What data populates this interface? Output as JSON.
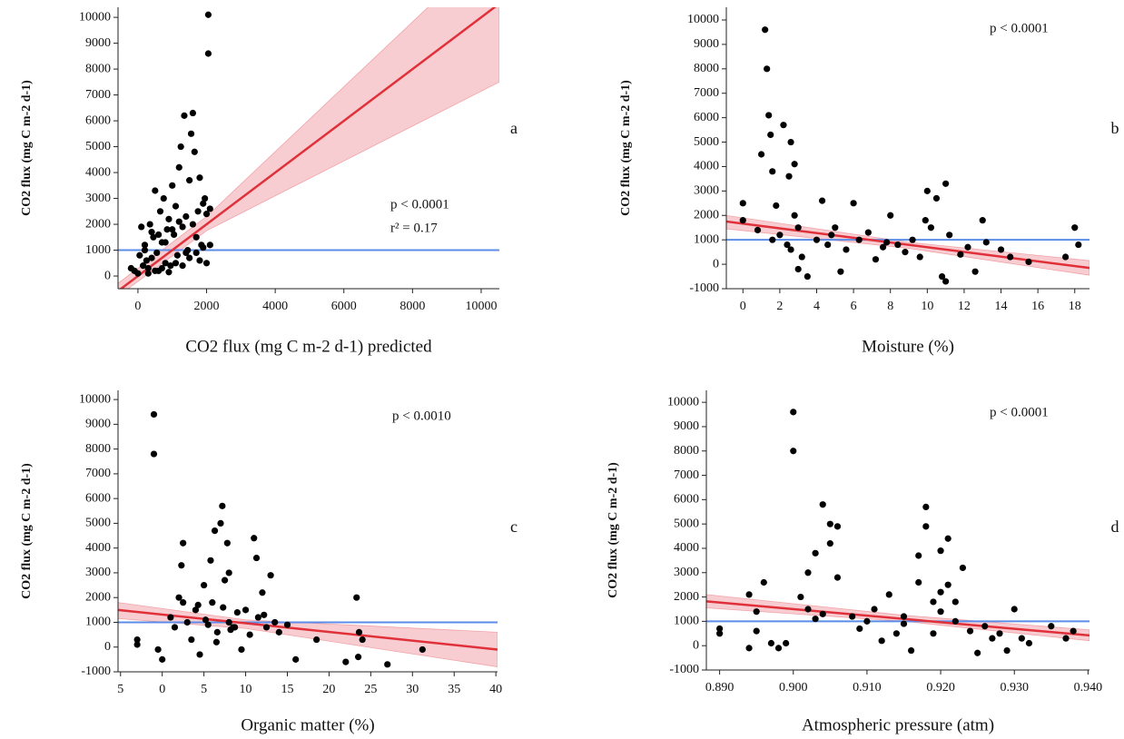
{
  "chart_data": [
    {
      "type": "scatter",
      "panel": "a",
      "y_label": "CO2 flux (mg C m-2 d-1)",
      "x_label": "CO2 flux (mg C m-2 d-1) predicted",
      "annotations": [
        "p < 0.0001",
        "r² =  0.17"
      ],
      "xlim": [
        -580,
        10530
      ],
      "ylim": [
        -490,
        10390
      ],
      "xticks": [
        0,
        2000,
        4000,
        6000,
        8000,
        10000
      ],
      "yticks": [
        0,
        1000,
        2000,
        3000,
        4000,
        5000,
        6000,
        7000,
        8000,
        9000,
        10000
      ],
      "color": "#000000",
      "reference_line": 1000,
      "reference_color": "#5b8de8",
      "fit_color": "#e0303a",
      "band_color": "#f6bcc2",
      "x": [
        -200,
        -100,
        0,
        50,
        100,
        150,
        200,
        250,
        300,
        350,
        400,
        450,
        500,
        550,
        600,
        650,
        700,
        750,
        800,
        850,
        900,
        950,
        1000,
        1050,
        1100,
        1150,
        1200,
        1250,
        1300,
        1350,
        1400,
        1450,
        1500,
        1550,
        1600,
        1650,
        1700,
        1750,
        1800,
        1850,
        1900,
        1950,
        2000,
        2050,
        2050,
        2100,
        2100,
        300,
        500,
        700,
        900,
        1100,
        1300,
        1500,
        1700,
        1900,
        200,
        400,
        600,
        800,
        1000,
        1200,
        1400,
        1600,
        2000,
        1800
      ],
      "values": [
        300,
        200,
        100,
        800,
        1900,
        400,
        1200,
        600,
        300,
        2000,
        700,
        1500,
        3300,
        900,
        200,
        2500,
        1300,
        3000,
        500,
        1800,
        2200,
        400,
        3500,
        1600,
        2700,
        800,
        4200,
        5000,
        1900,
        6200,
        2300,
        1000,
        3700,
        5500,
        6300,
        4800,
        1500,
        2500,
        600,
        1200,
        2800,
        3000,
        2400,
        10100,
        8600,
        2600,
        1200,
        100,
        200,
        300,
        150,
        500,
        400,
        700,
        900,
        1100,
        1000,
        1700,
        1600,
        1300,
        1800,
        2100,
        900,
        2000,
        500,
        3800
      ],
      "fit": {
        "x": [
          -580,
          10530
        ],
        "y": [
          -580,
          10530
        ]
      },
      "band": {
        "x": [
          -580,
          2000,
          10530
        ],
        "lower": [
          -780,
          1750,
          7500
        ],
        "upper": [
          -280,
          2300,
          13000
        ]
      }
    },
    {
      "type": "scatter",
      "panel": "b",
      "y_label": "CO2 flux (mg C m-2 d-1)",
      "x_label": "Moisture (%)",
      "annotations": [
        "p < 0.0001"
      ],
      "xlim": [
        -0.9,
        18.8
      ],
      "ylim": [
        -1000,
        10520
      ],
      "xticks": [
        0,
        2,
        4,
        6,
        8,
        10,
        12,
        14,
        16,
        18
      ],
      "yticks": [
        -1000,
        0,
        1000,
        2000,
        3000,
        4000,
        5000,
        6000,
        7000,
        8000,
        9000,
        10000
      ],
      "color": "#000000",
      "reference_line": 1000,
      "reference_color": "#5b8de8",
      "fit_color": "#e0303a",
      "band_color": "#f6bcc2",
      "x": [
        0,
        0,
        1,
        1.2,
        1.3,
        1.4,
        1.5,
        1.6,
        1.8,
        2,
        2.2,
        2.4,
        2.5,
        2.6,
        2.8,
        3,
        3.2,
        3.5,
        4,
        4.3,
        4.6,
        5,
        5.3,
        5.6,
        6,
        6.3,
        6.8,
        7.2,
        7.6,
        8,
        8.4,
        8.8,
        9.2,
        9.6,
        10,
        10.2,
        10.5,
        10.8,
        11,
        11,
        11.2,
        11.8,
        12.2,
        12.6,
        13,
        13.2,
        14,
        14.5,
        15.5,
        17.5,
        18,
        18.2,
        2.8,
        2.6,
        3,
        1.6,
        0.8,
        4.8,
        9.9,
        7.8
      ],
      "values": [
        2500,
        1800,
        4500,
        9600,
        8000,
        6100,
        5300,
        3800,
        2400,
        1200,
        5700,
        800,
        3600,
        5000,
        4100,
        1500,
        300,
        -500,
        1000,
        2600,
        800,
        1500,
        -300,
        600,
        2500,
        1000,
        1300,
        200,
        700,
        2000,
        800,
        500,
        1000,
        300,
        3000,
        1500,
        2700,
        -500,
        3300,
        -700,
        1200,
        400,
        700,
        -300,
        1800,
        900,
        600,
        300,
        100,
        300,
        1500,
        800,
        2000,
        600,
        -200,
        1000,
        1400,
        1200,
        1800,
        900
      ],
      "fit": {
        "x": [
          -0.9,
          18.8
        ],
        "y": [
          1750,
          -150
        ]
      },
      "band": {
        "x": [
          -0.9,
          9,
          18.8
        ],
        "lower": [
          1450,
          650,
          -450
        ],
        "upper": [
          2000,
          900,
          150
        ]
      }
    },
    {
      "type": "scatter",
      "panel": "c",
      "y_label": "CO2 flux (mg C m-2 d-1)",
      "x_label": "Organic matter (%)",
      "annotations": [
        "p < 0.0010"
      ],
      "xlim": [
        -5.3,
        40.2
      ],
      "ylim": [
        -1000,
        10370
      ],
      "xticks": [
        {
          "value": -5,
          "label": "5"
        },
        0,
        5,
        10,
        15,
        20,
        25,
        30,
        35,
        40
      ],
      "yticks": [
        -1000,
        0,
        1000,
        2000,
        3000,
        4000,
        5000,
        6000,
        7000,
        8000,
        9000,
        10000
      ],
      "color": "#000000",
      "reference_line": 1000,
      "reference_color": "#5b8de8",
      "fit_color": "#e0303a",
      "band_color": "#f6bcc2",
      "x": [
        -3,
        -3,
        -1,
        -1,
        -0.5,
        0,
        1,
        1.5,
        2,
        2.5,
        3,
        3.5,
        4,
        4.5,
        5,
        5.5,
        5.8,
        6,
        6.3,
        6.6,
        7,
        7.2,
        7.5,
        7.8,
        8,
        8,
        8.2,
        8.5,
        9,
        9.5,
        10,
        10.5,
        11,
        11.3,
        11.5,
        12,
        12.5,
        13,
        13.5,
        14,
        15,
        16,
        18.5,
        22,
        23.3,
        23.5,
        23.6,
        24,
        27,
        31.2,
        6.5,
        7.3,
        4.3,
        2.3,
        2.5,
        12.2,
        5.2,
        8.7
      ],
      "values": [
        300,
        100,
        9400,
        7800,
        -100,
        -500,
        1200,
        800,
        2000,
        4200,
        1000,
        300,
        1500,
        -300,
        2500,
        900,
        3500,
        1800,
        4700,
        600,
        5000,
        5700,
        2700,
        4200,
        1000,
        3000,
        700,
        800,
        1400,
        -100,
        1500,
        500,
        4400,
        3600,
        1200,
        2200,
        800,
        2900,
        1000,
        600,
        900,
        -500,
        300,
        -600,
        2000,
        -400,
        600,
        300,
        -700,
        -100,
        200,
        1600,
        1700,
        3300,
        1800,
        1300,
        1100,
        800
      ],
      "fit": {
        "x": [
          -5.3,
          40.2
        ],
        "y": [
          1500,
          -100
        ]
      },
      "band": {
        "x": [
          -5.3,
          10,
          40.2
        ],
        "lower": [
          1150,
          750,
          -800
        ],
        "upper": [
          1800,
          1100,
          600
        ]
      }
    },
    {
      "type": "scatter",
      "panel": "d",
      "y_label": "CO2 flux (mg C m-2 d-1)",
      "x_label": "Atmospheric pressure (atm)",
      "annotations": [
        "p < 0.0001"
      ],
      "xlim": [
        0.8882,
        0.9402
      ],
      "ylim": [
        -1000,
        10490
      ],
      "xticks": [
        {
          "value": 0.89,
          "label": "0.890"
        },
        {
          "value": 0.9,
          "label": "0.900"
        },
        {
          "value": 0.91,
          "label": "0.910"
        },
        {
          "value": 0.92,
          "label": "0.920"
        },
        {
          "value": 0.93,
          "label": "0.930"
        },
        {
          "value": 0.94,
          "label": "0.940"
        }
      ],
      "yticks": [
        -1000,
        0,
        1000,
        2000,
        3000,
        4000,
        5000,
        6000,
        7000,
        8000,
        9000,
        10000
      ],
      "color": "#000000",
      "reference_line": 1000,
      "reference_color": "#5b8de8",
      "fit_color": "#e0303a",
      "band_color": "#f6bcc2",
      "x": [
        0.89,
        0.89,
        0.894,
        0.894,
        0.895,
        0.895,
        0.896,
        0.897,
        0.898,
        0.899,
        0.9,
        0.9,
        0.901,
        0.902,
        0.903,
        0.903,
        0.904,
        0.904,
        0.905,
        0.905,
        0.906,
        0.906,
        0.908,
        0.909,
        0.91,
        0.911,
        0.912,
        0.913,
        0.914,
        0.915,
        0.916,
        0.917,
        0.917,
        0.918,
        0.918,
        0.919,
        0.919,
        0.92,
        0.92,
        0.921,
        0.921,
        0.922,
        0.922,
        0.923,
        0.924,
        0.925,
        0.926,
        0.927,
        0.928,
        0.929,
        0.93,
        0.931,
        0.932,
        0.935,
        0.937,
        0.938,
        0.902,
        0.915,
        0.92
      ],
      "values": [
        700,
        500,
        2100,
        -100,
        1400,
        600,
        2600,
        100,
        -100,
        100,
        9600,
        8000,
        2000,
        3000,
        3800,
        1100,
        5800,
        1300,
        5000,
        4200,
        2800,
        4900,
        1200,
        700,
        1000,
        1500,
        200,
        2100,
        500,
        900,
        -200,
        3700,
        2600,
        5700,
        4900,
        1800,
        500,
        3900,
        1400,
        4400,
        2500,
        1800,
        1000,
        3200,
        600,
        -300,
        800,
        300,
        500,
        -200,
        1500,
        300,
        100,
        800,
        300,
        600,
        1500,
        1200,
        2200
      ],
      "fit": {
        "x": [
          0.8882,
          0.9402
        ],
        "y": [
          1820,
          420
        ]
      },
      "band": {
        "x": [
          0.8882,
          0.915,
          0.9402
        ],
        "lower": [
          1550,
          1000,
          200
        ],
        "upper": [
          2100,
          1250,
          650
        ]
      }
    }
  ]
}
